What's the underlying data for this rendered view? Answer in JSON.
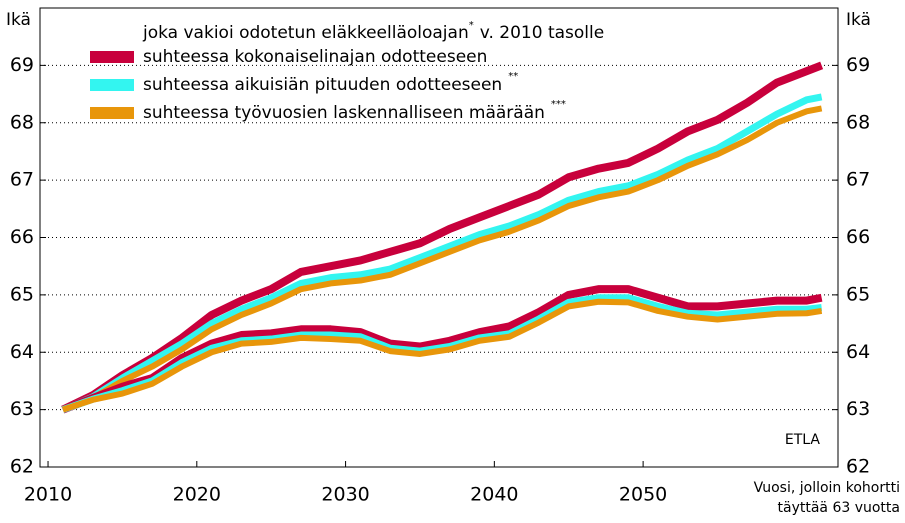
{
  "chart_data": {
    "type": "line",
    "y_label_left": "Ikä",
    "y_label_right": "Ikä",
    "legend_title": "joka vakioi odotetun eläkkeelläoloajan",
    "legend_title_note": "*",
    "legend_title_end": "v. 2010 tasolle",
    "x_label": [
      "Vuosi, jolloin kohortti",
      "täyttää 63 vuotta"
    ],
    "source": "ETLA",
    "x": [
      2011,
      2013,
      2015,
      2017,
      2019,
      2021,
      2023,
      2025,
      2027,
      2029,
      2031,
      2033,
      2035,
      2037,
      2039,
      2041,
      2043,
      2045,
      2047,
      2049,
      2051,
      2053,
      2055,
      2057,
      2059,
      2061,
      2062
    ],
    "series": [
      {
        "name": "suhteessa kokonaiselinajan odotteeseen",
        "color": "#c8003c",
        "values": [
          63.0,
          63.25,
          63.6,
          63.9,
          64.25,
          64.65,
          64.9,
          65.1,
          65.4,
          65.5,
          65.6,
          65.75,
          65.9,
          66.15,
          66.35,
          66.55,
          66.75,
          67.05,
          67.2,
          67.3,
          67.55,
          67.85,
          68.05,
          68.35,
          68.7,
          68.9,
          69.0
        ],
        "values_low": [
          63.0,
          63.2,
          63.4,
          63.55,
          63.9,
          64.15,
          64.3,
          64.33,
          64.4,
          64.4,
          64.35,
          64.15,
          64.1,
          64.2,
          64.35,
          64.45,
          64.7,
          65.0,
          65.1,
          65.1,
          64.95,
          64.8,
          64.8,
          64.85,
          64.9,
          64.9,
          64.95
        ]
      },
      {
        "name": "suhteessa aikuisiän pituuden odotteeseen",
        "note": "**",
        "color": "#33f5f0",
        "values": [
          63.0,
          63.22,
          63.55,
          63.85,
          64.15,
          64.5,
          64.75,
          64.95,
          65.2,
          65.3,
          65.35,
          65.45,
          65.65,
          65.85,
          66.05,
          66.2,
          66.4,
          66.65,
          66.8,
          66.9,
          67.1,
          67.35,
          67.55,
          67.85,
          68.15,
          68.4,
          68.45
        ],
        "values_low": [
          63.0,
          63.18,
          63.33,
          63.5,
          63.82,
          64.07,
          64.2,
          64.23,
          64.3,
          64.3,
          64.27,
          64.07,
          64.02,
          64.1,
          64.25,
          64.32,
          64.58,
          64.87,
          64.95,
          64.95,
          64.8,
          64.68,
          64.65,
          64.7,
          64.75,
          64.75,
          64.78
        ]
      },
      {
        "name": "suhteessa työvuosien laskennalliseen määrään",
        "note": "***",
        "color": "#e8960a",
        "values": [
          63.0,
          63.2,
          63.5,
          63.75,
          64.05,
          64.4,
          64.65,
          64.85,
          65.1,
          65.2,
          65.25,
          65.35,
          65.55,
          65.75,
          65.95,
          66.1,
          66.3,
          66.55,
          66.7,
          66.8,
          67.0,
          67.25,
          67.45,
          67.7,
          68.0,
          68.2,
          68.25
        ],
        "values_low": [
          63.0,
          63.17,
          63.28,
          63.45,
          63.75,
          64.0,
          64.15,
          64.18,
          64.25,
          64.23,
          64.2,
          64.02,
          63.97,
          64.05,
          64.2,
          64.27,
          64.52,
          64.8,
          64.88,
          64.87,
          64.72,
          64.62,
          64.57,
          64.62,
          64.67,
          64.68,
          64.72
        ]
      }
    ],
    "xlim": [
      2009.46,
      2063.1
    ],
    "xticks": [
      2010,
      2020,
      2030,
      2040,
      2050
    ],
    "ylim": [
      62,
      70
    ],
    "yticks": [
      62,
      63,
      64,
      65,
      66,
      67,
      68,
      69
    ],
    "grid": true
  }
}
